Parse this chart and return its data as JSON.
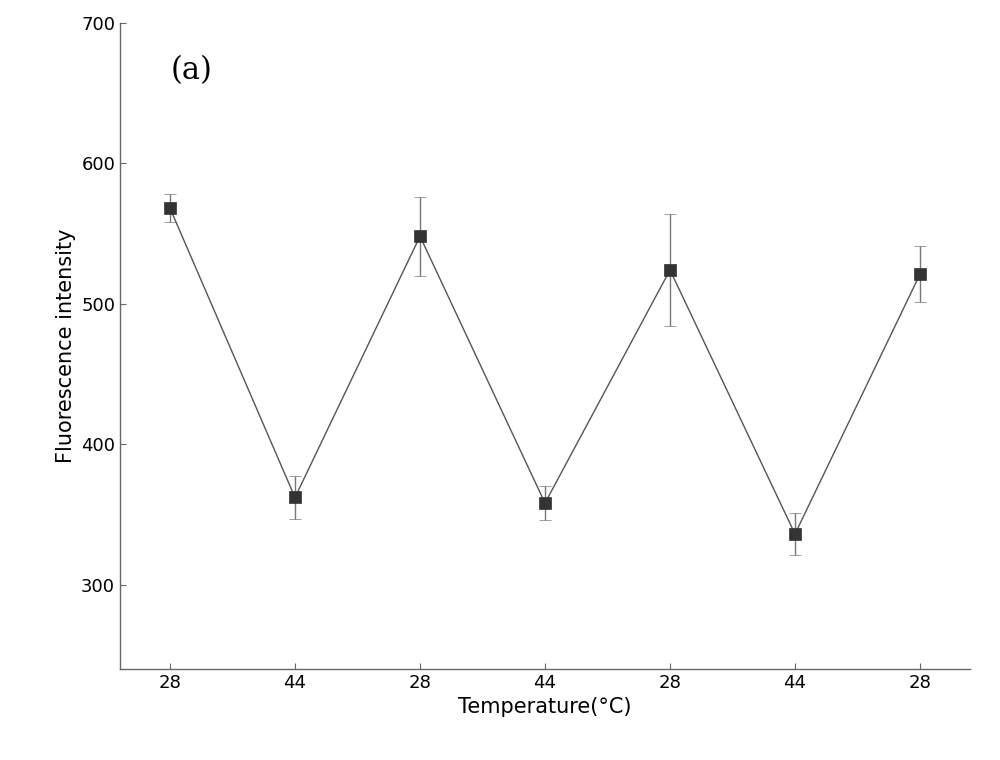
{
  "x_labels": [
    "28",
    "44",
    "28",
    "44",
    "28",
    "44",
    "28"
  ],
  "x_positions": [
    0,
    1,
    2,
    3,
    4,
    5,
    6
  ],
  "y_values": [
    568,
    362,
    548,
    358,
    524,
    336,
    521
  ],
  "y_errors": [
    10,
    15,
    28,
    12,
    40,
    15,
    20
  ],
  "xlabel": "Temperature(°C)",
  "ylabel": "Fluorescence intensity",
  "annotation": "(a)",
  "ylim": [
    240,
    700
  ],
  "yticks": [
    300,
    400,
    500,
    600,
    700
  ],
  "xlim": [
    -0.4,
    6.4
  ],
  "line_color": "#555555",
  "marker_color": "#333333",
  "error_color": "#777777",
  "background_color": "#ffffff",
  "label_fontsize": 15,
  "tick_fontsize": 13,
  "annotation_fontsize": 22,
  "marker_size": 8,
  "line_width": 1.0
}
